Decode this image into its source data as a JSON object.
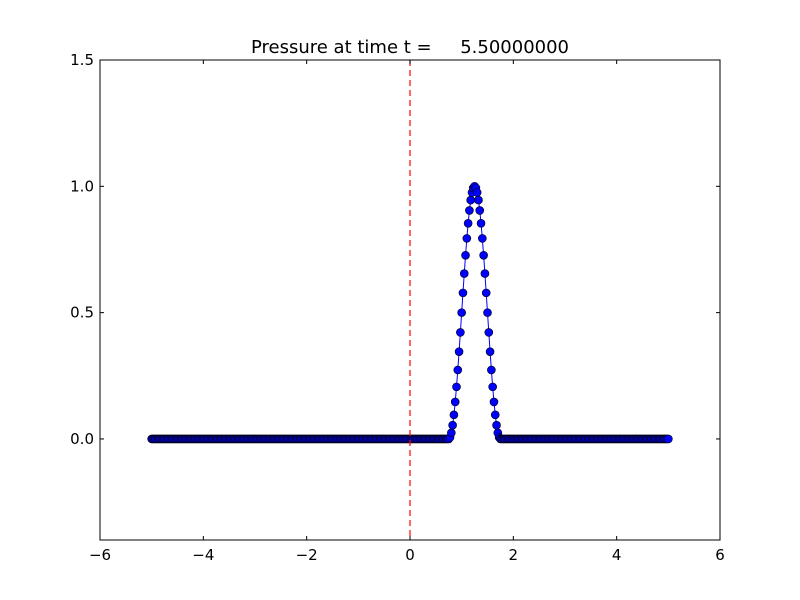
{
  "chart_data": {
    "type": "line",
    "title": "Pressure at time t =     5.50000000",
    "xlabel": "",
    "ylabel": "",
    "xlim": [
      -6,
      6
    ],
    "ylim": [
      -0.4,
      1.5
    ],
    "xticks": [
      -6,
      -4,
      -2,
      0,
      2,
      4,
      6
    ],
    "xtick_labels": [
      "−6",
      "−4",
      "−2",
      "0",
      "2",
      "4",
      "6"
    ],
    "yticks": [
      0.0,
      0.5,
      1.0,
      1.5
    ],
    "ytick_labels": [
      "0.0",
      "0.5",
      "1.0",
      "1.5"
    ],
    "grid": false,
    "series": [
      {
        "color": "#0000ff",
        "marker": "circle",
        "x_range": [
          -5,
          5
        ],
        "num_points": 401,
        "pulse": {
          "shape": "cosine-squared",
          "center": 1.25,
          "support": [
            0.75,
            1.75
          ],
          "peak": 1.0
        }
      }
    ],
    "annotations": [
      {
        "type": "vline",
        "x": 0,
        "color": "#ff0000",
        "style": "dashed"
      }
    ]
  }
}
